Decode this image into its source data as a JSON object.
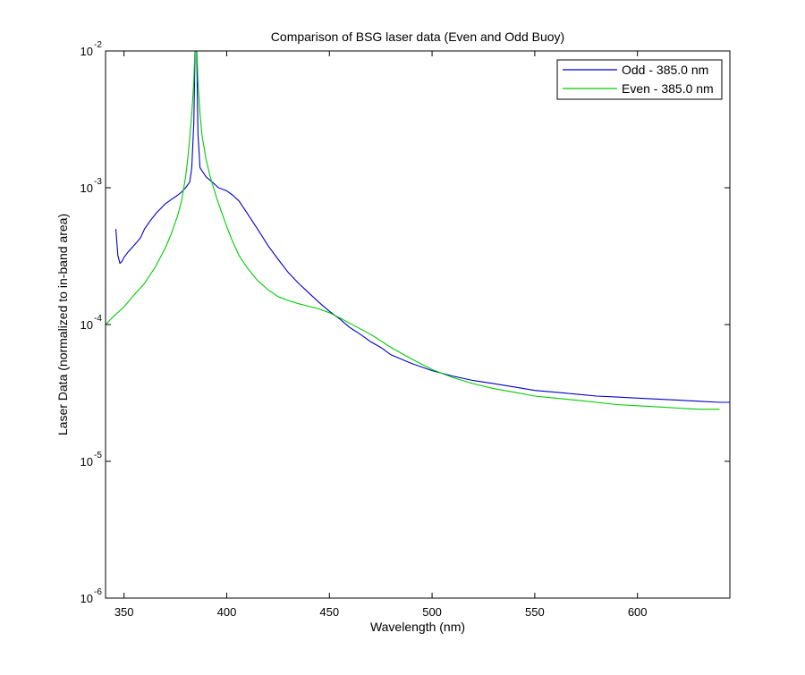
{
  "chart_data": {
    "type": "line",
    "title": "Comparison of BSG laser data (Even and Odd Buoy)",
    "xlabel": "Wavelength (nm)",
    "ylabel": "Laser Data (normalized to in-band area)",
    "xlim": [
      341,
      645
    ],
    "ylim": [
      1e-06,
      0.01
    ],
    "yscale": "log",
    "grid": false,
    "legend_position": "top-right",
    "x_ticks": [
      350,
      400,
      450,
      500,
      550,
      600
    ],
    "y_ticks": [
      {
        "value": 1e-06,
        "base": "10",
        "exp": "-6"
      },
      {
        "value": 1e-05,
        "base": "10",
        "exp": "-5"
      },
      {
        "value": 0.0001,
        "base": "10",
        "exp": "-4"
      },
      {
        "value": 0.001,
        "base": "10",
        "exp": "-3"
      },
      {
        "value": 0.01,
        "base": "10",
        "exp": "-2"
      }
    ],
    "series": [
      {
        "name": "Odd - 385.0 nm",
        "color": "#0000cc",
        "x": [
          346,
          347,
          348,
          349,
          350,
          352,
          355,
          358,
          360,
          363,
          366,
          370,
          373,
          376,
          378,
          380,
          382,
          383,
          384,
          384.6,
          385,
          385.4,
          386,
          387,
          390,
          393,
          396,
          400,
          403,
          406,
          410,
          415,
          420,
          425,
          430,
          435,
          440,
          445,
          450,
          455,
          460,
          465,
          470,
          475,
          480,
          490,
          500,
          510,
          520,
          530,
          540,
          550,
          560,
          570,
          580,
          590,
          600,
          610,
          620,
          630,
          640,
          645
        ],
        "y": [
          0.0005,
          0.00032,
          0.00028,
          0.00029,
          0.00031,
          0.00034,
          0.00038,
          0.00043,
          0.0005,
          0.00058,
          0.00066,
          0.00076,
          0.00082,
          0.00088,
          0.00093,
          0.001,
          0.0011,
          0.0014,
          0.003,
          0.01,
          0.01,
          0.01,
          0.0025,
          0.0014,
          0.0012,
          0.0011,
          0.001,
          0.00095,
          0.00088,
          0.0008,
          0.00065,
          0.0005,
          0.00038,
          0.0003,
          0.00024,
          0.0002,
          0.00017,
          0.000145,
          0.000125,
          0.00011,
          9.5e-05,
          8.5e-05,
          7.5e-05,
          6.8e-05,
          6e-05,
          5.2e-05,
          4.6e-05,
          4.2e-05,
          3.9e-05,
          3.7e-05,
          3.5e-05,
          3.3e-05,
          3.2e-05,
          3.1e-05,
          3e-05,
          2.95e-05,
          2.9e-05,
          2.85e-05,
          2.8e-05,
          2.75e-05,
          2.7e-05,
          2.7e-05
        ]
      },
      {
        "name": "Even - 385.0 nm",
        "color": "#00cc00",
        "x": [
          341,
          345,
          350,
          355,
          360,
          365,
          370,
          373,
          376,
          378,
          380,
          381,
          382,
          383,
          384,
          384.5,
          385,
          385.5,
          386,
          387,
          388,
          390,
          392,
          395,
          398,
          400,
          403,
          406,
          410,
          415,
          420,
          425,
          430,
          435,
          440,
          445,
          450,
          455,
          460,
          470,
          480,
          490,
          500,
          510,
          520,
          530,
          540,
          550,
          560,
          570,
          580,
          590,
          600,
          610,
          620,
          630,
          640
        ],
        "y": [
          0.0001,
          0.000115,
          0.000135,
          0.000165,
          0.0002,
          0.00026,
          0.00036,
          0.00046,
          0.00062,
          0.0008,
          0.0012,
          0.0016,
          0.0023,
          0.0035,
          0.006,
          0.01,
          0.01,
          0.01,
          0.006,
          0.0035,
          0.0024,
          0.0016,
          0.0012,
          0.00085,
          0.00063,
          0.00052,
          0.0004,
          0.00032,
          0.00026,
          0.00021,
          0.00018,
          0.00016,
          0.00015,
          0.000142,
          0.000136,
          0.00013,
          0.000122,
          0.000112,
          0.000102,
          8.5e-05,
          6.8e-05,
          5.6e-05,
          4.7e-05,
          4.1e-05,
          3.7e-05,
          3.4e-05,
          3.2e-05,
          3e-05,
          2.9e-05,
          2.8e-05,
          2.7e-05,
          2.6e-05,
          2.55e-05,
          2.5e-05,
          2.45e-05,
          2.4e-05,
          2.4e-05
        ]
      }
    ]
  }
}
